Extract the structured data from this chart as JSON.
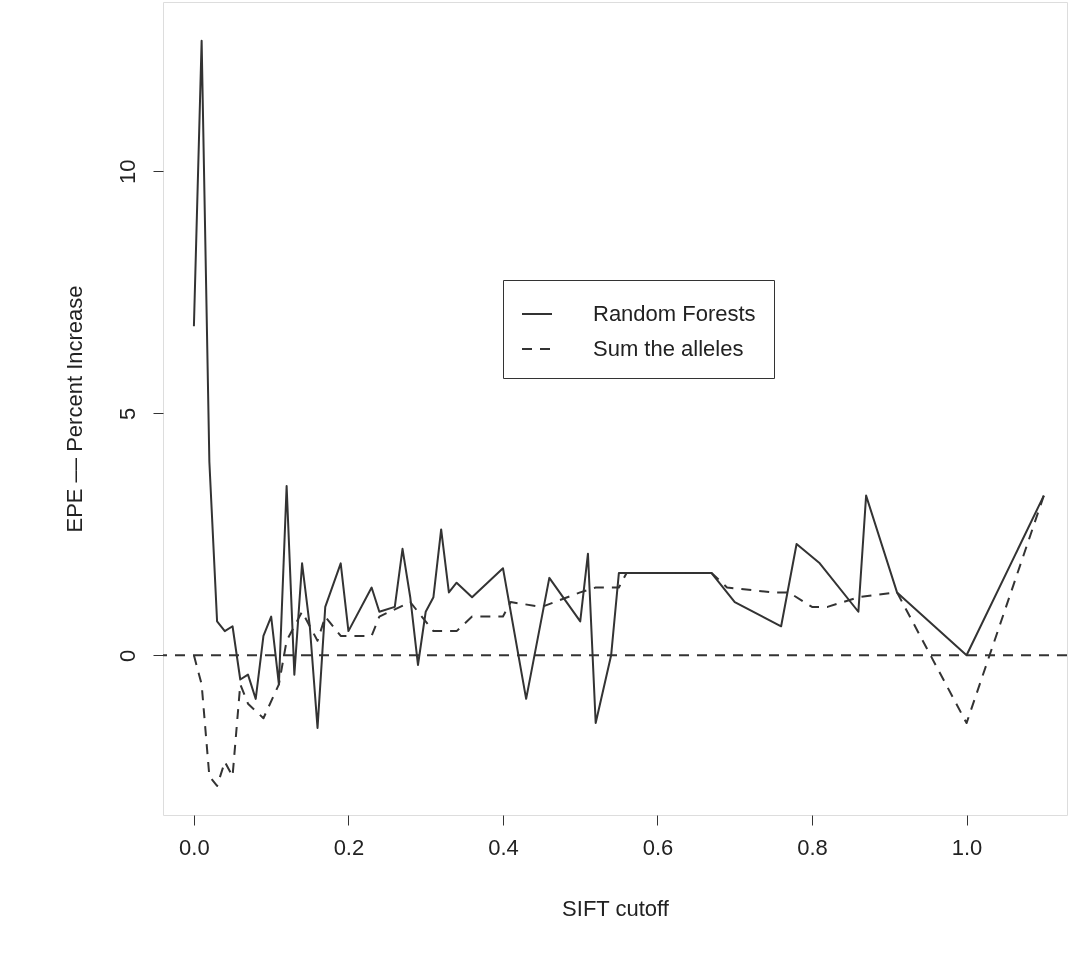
{
  "chart_data": {
    "type": "line",
    "xlabel": "SIFT cutoff",
    "ylabel": "EPE –– Percent Increase",
    "xlim": [
      -0.04,
      1.13
    ],
    "ylim": [
      -3.3,
      13.5
    ],
    "xticks": [
      {
        "value": 0,
        "label": "0.0"
      },
      {
        "value": 0.2,
        "label": "0.2"
      },
      {
        "value": 0.4,
        "label": "0.4"
      },
      {
        "value": 0.6,
        "label": "0.6"
      },
      {
        "value": 0.8,
        "label": "0.8"
      },
      {
        "value": 1,
        "label": "1.0"
      }
    ],
    "yticks": [
      0,
      5,
      10
    ],
    "grid": false,
    "legend": "top right",
    "marker": "none",
    "ref_lines": [
      {
        "axis": "y",
        "value": 0,
        "line_style": "dashed",
        "color": "#333333"
      }
    ],
    "series": [
      {
        "name": "Random Forests",
        "color": "#333333",
        "line_style": "solid",
        "x": [
          0,
          0.01,
          0.02,
          0.03,
          0.04,
          0.05,
          0.06,
          0.07,
          0.08,
          0.09,
          0.1,
          0.11,
          0.12,
          0.13,
          0.14,
          0.15,
          0.16,
          0.17,
          0.19,
          0.2,
          0.23,
          0.24,
          0.26,
          0.27,
          0.28,
          0.29,
          0.3,
          0.31,
          0.32,
          0.33,
          0.34,
          0.36,
          0.4,
          0.43,
          0.46,
          0.5,
          0.51,
          0.52,
          0.54,
          0.55,
          0.67,
          0.7,
          0.76,
          0.78,
          0.81,
          0.86,
          0.87,
          0.91,
          1.0,
          1.1
        ],
        "values": [
          6.8,
          12.7,
          4.0,
          0.7,
          0.5,
          0.6,
          -0.5,
          -0.4,
          -0.9,
          0.4,
          0.8,
          -0.6,
          3.5,
          -0.4,
          1.9,
          0.6,
          -1.5,
          1.0,
          1.9,
          0.5,
          1.4,
          0.9,
          1.0,
          2.2,
          1.2,
          -0.2,
          0.9,
          1.2,
          2.6,
          1.3,
          1.5,
          1.2,
          1.8,
          -0.9,
          1.6,
          0.7,
          2.1,
          -1.4,
          0.0,
          1.7,
          1.7,
          1.1,
          0.6,
          2.3,
          1.9,
          0.9,
          3.3,
          1.3,
          0.0,
          3.3
        ]
      },
      {
        "name": "Sum the alleles",
        "color": "#333333",
        "line_style": "dashed",
        "x": [
          0,
          0.01,
          0.02,
          0.03,
          0.04,
          0.05,
          0.06,
          0.07,
          0.09,
          0.11,
          0.12,
          0.13,
          0.14,
          0.15,
          0.16,
          0.17,
          0.19,
          0.23,
          0.24,
          0.28,
          0.31,
          0.34,
          0.36,
          0.4,
          0.41,
          0.45,
          0.5,
          0.52,
          0.55,
          0.56,
          0.67,
          0.69,
          0.75,
          0.77,
          0.8,
          0.82,
          0.86,
          0.91,
          1.0,
          1.1
        ],
        "values": [
          0.0,
          -0.6,
          -2.5,
          -2.7,
          -2.2,
          -2.5,
          -0.6,
          -1.0,
          -1.3,
          -0.6,
          0.3,
          0.6,
          0.9,
          0.6,
          0.3,
          0.8,
          0.4,
          0.4,
          0.8,
          1.1,
          0.5,
          0.5,
          0.8,
          0.8,
          1.1,
          1.0,
          1.3,
          1.4,
          1.4,
          1.7,
          1.7,
          1.4,
          1.3,
          1.3,
          1.0,
          1.0,
          1.2,
          1.3,
          -1.4,
          3.3
        ]
      }
    ]
  }
}
